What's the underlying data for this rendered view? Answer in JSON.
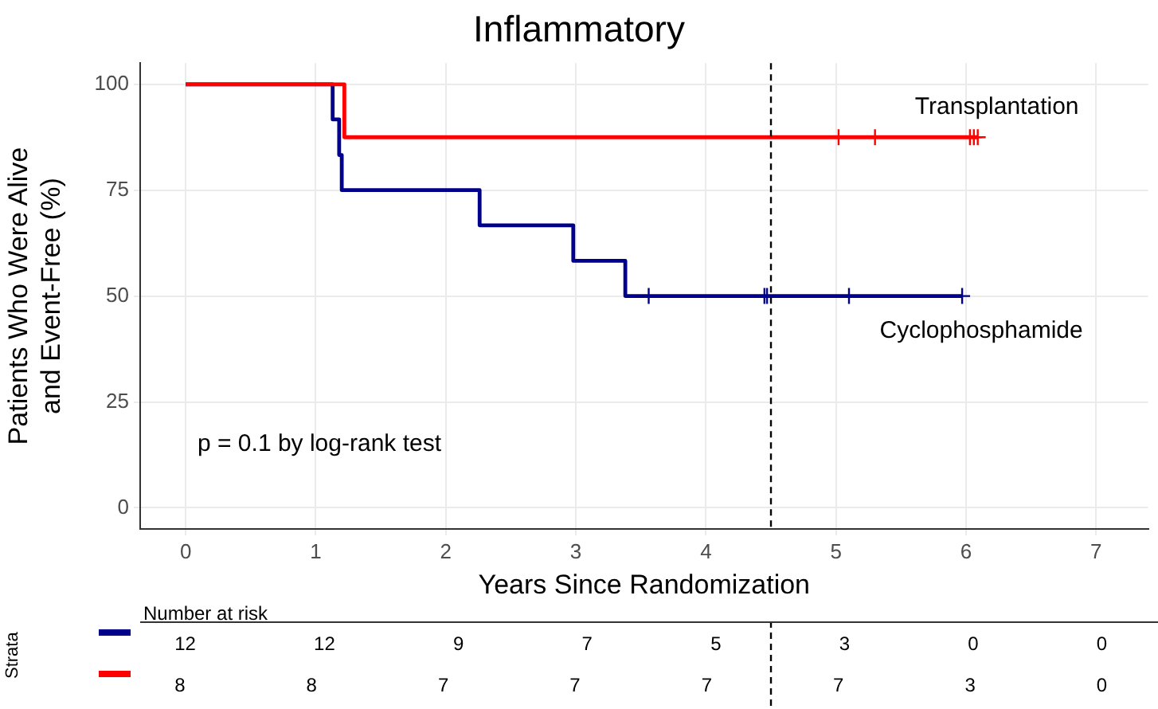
{
  "chart_data": [
    {
      "type": "step",
      "title": "Inflammatory",
      "xlabel": "Years Since Randomization",
      "ylabel": "Patients Who Were Alive and Event-Free (%)",
      "annotations": [
        "p = 0.1 by log-rank test"
      ],
      "xlim": [
        -0.35,
        7.4
      ],
      "xticks": [
        0,
        1,
        2,
        3,
        4,
        5,
        6,
        7
      ],
      "ylim": [
        -5,
        105
      ],
      "yticks": [
        0,
        25,
        50,
        75,
        100
      ],
      "grid": true,
      "ref_lines": [
        {
          "axis": "x",
          "value": 4.5,
          "line_style": "dashed",
          "color": "#000000"
        }
      ],
      "series": [
        {
          "name": "Transplantation",
          "color": "#ff0000",
          "x": [
            0,
            1.22,
            6.09
          ],
          "values": [
            100,
            87.5,
            87.5
          ]
        },
        {
          "name": "Cyclophosphamide",
          "color": "#00008b",
          "x": [
            0,
            1.13,
            1.18,
            1.2,
            2.26,
            2.98,
            3.38,
            5.97
          ],
          "values": [
            100,
            91.7,
            83.3,
            75,
            66.7,
            58.3,
            50,
            50
          ]
        },
        {
          "type": "scatter",
          "marker": "cross",
          "color": "#ff0000",
          "x": [
            5.02,
            5.3,
            6.03,
            6.06,
            6.09
          ],
          "values": [
            87.5,
            87.5,
            87.5,
            87.5,
            87.5
          ]
        },
        {
          "type": "scatter",
          "marker": "cross",
          "color": "#00008b",
          "x": [
            3.56,
            4.45,
            4.47,
            5.1,
            5.97
          ],
          "values": [
            50,
            50,
            50,
            50,
            50
          ]
        }
      ]
    },
    {
      "type": "other",
      "title": "Number at risk",
      "ylabel": "Strata",
      "annotations": [
        "12 12 9 7 5 3 0 0",
        "8 8 7 7 7 7 3 0"
      ]
    }
  ]
}
